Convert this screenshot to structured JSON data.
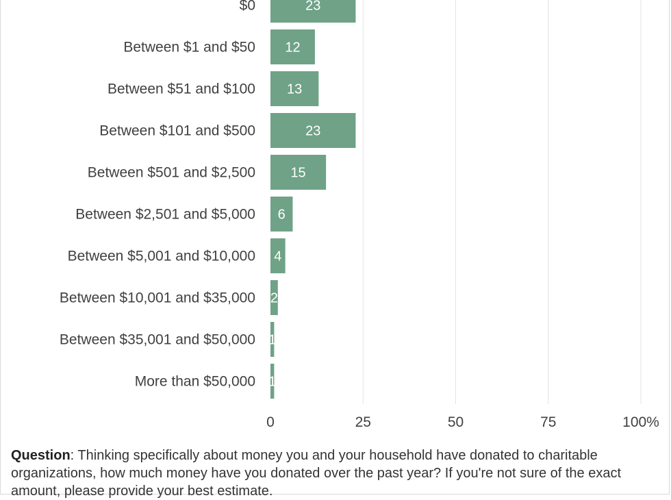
{
  "chart_data": {
    "type": "bar",
    "orientation": "horizontal",
    "categories": [
      "$0",
      "Between $1 and $50",
      "Between $51 and $100",
      "Between $101 and $500",
      "Between $501 and $2,500",
      "Between $2,501 and $5,000",
      "Between $5,001 and $10,000",
      "Between $10,001 and $35,000",
      "Between $35,001 and $50,000",
      "More than $50,000"
    ],
    "values": [
      23,
      12,
      13,
      23,
      15,
      6,
      4,
      2,
      1,
      1
    ],
    "value_labels": [
      "23",
      "12",
      "13",
      "23",
      "15",
      "6",
      "4",
      "2",
      "1",
      "1"
    ],
    "xlim": [
      0,
      100
    ],
    "xticks": [
      0,
      25,
      50,
      75,
      100
    ],
    "xtick_labels": [
      "0",
      "25",
      "50",
      "75",
      "100%"
    ],
    "grid": true,
    "bar_color": "#6fa287",
    "grid_color": "#e3e3e3"
  },
  "note": {
    "lead": "Question",
    "text": ": Thinking specifically about money you and your household have donated to charitable organizations, how much money have you donated over the past year? If you're not sure of the exact amount, please provide your best estimate."
  }
}
